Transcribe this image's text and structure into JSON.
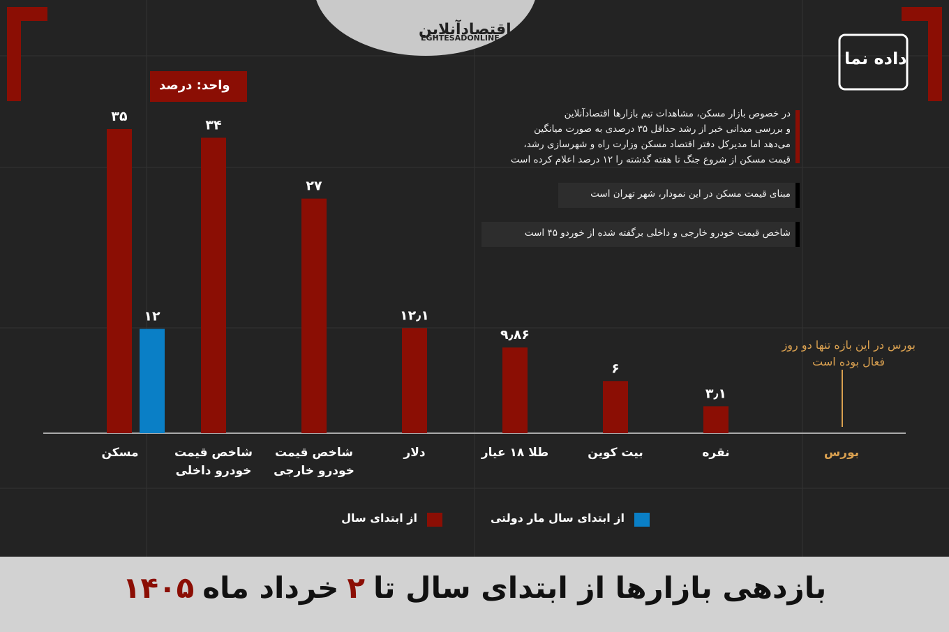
{
  "logo": {
    "name": "اقتصادآنلاین",
    "latin": "EGHTESADONLINE"
  },
  "brand": "داده نما",
  "chart_data": {
    "type": "bar",
    "title_parts": [
      "بازدهی بازارها از ابتدای سال تا",
      "۲",
      "خرداد ماه",
      "۱۴۰۵"
    ],
    "unit_label": "واحد: درصد",
    "categories": [
      "مسکن",
      "شاخص قیمت خودرو داخلی",
      "شاخص قیمت خودرو خارجی",
      "دلار",
      "طلا ۱۸ عیار",
      "بیت کوین",
      "نقره",
      "بورس"
    ],
    "series": [
      {
        "name": "از ابتدای سال",
        "color": "#8b0e04",
        "values": [
          35,
          34,
          27,
          12.1,
          9.86,
          6,
          3.1,
          null
        ],
        "value_labels": [
          "۳۵",
          "۳۴",
          "۲۷",
          "۱۲٫۱",
          "۹٫۸۶",
          "۶",
          "۳٫۱",
          null
        ]
      },
      {
        "name": "از ابتدای سال مار دولتی",
        "color": "#0a7fc6",
        "values": [
          12,
          null,
          null,
          null,
          null,
          null,
          null,
          null
        ],
        "value_labels": [
          "۱۲",
          null,
          null,
          null,
          null,
          null,
          null,
          null
        ]
      }
    ],
    "notes": [
      [
        "در خصوص بازار مسکن، مشاهدات تیم بازارها اقتصادآنلاین",
        "و بررسی میدانی خبر از رشد حداقل ۳۵ درصدی به صورت میانگین",
        "می‌دهد اما مدیرکل دفتر اقتصاد مسکن وزارت راه و شهرسازی رشد،",
        "قیمت مسکن از شروع جنگ تا هفته گذشته را ۱۲ درصد اعلام کرده است"
      ],
      [
        "مبنای قیمت مسکن در این نمودار، شهر تهران است"
      ],
      [
        "شاخص قیمت خودرو خارجی و داخلی برگفته شده از خوردو ۴۵ است"
      ]
    ],
    "annotation": [
      "بورس در این بازه تنها دو روز",
      "فعال بوده است"
    ]
  }
}
